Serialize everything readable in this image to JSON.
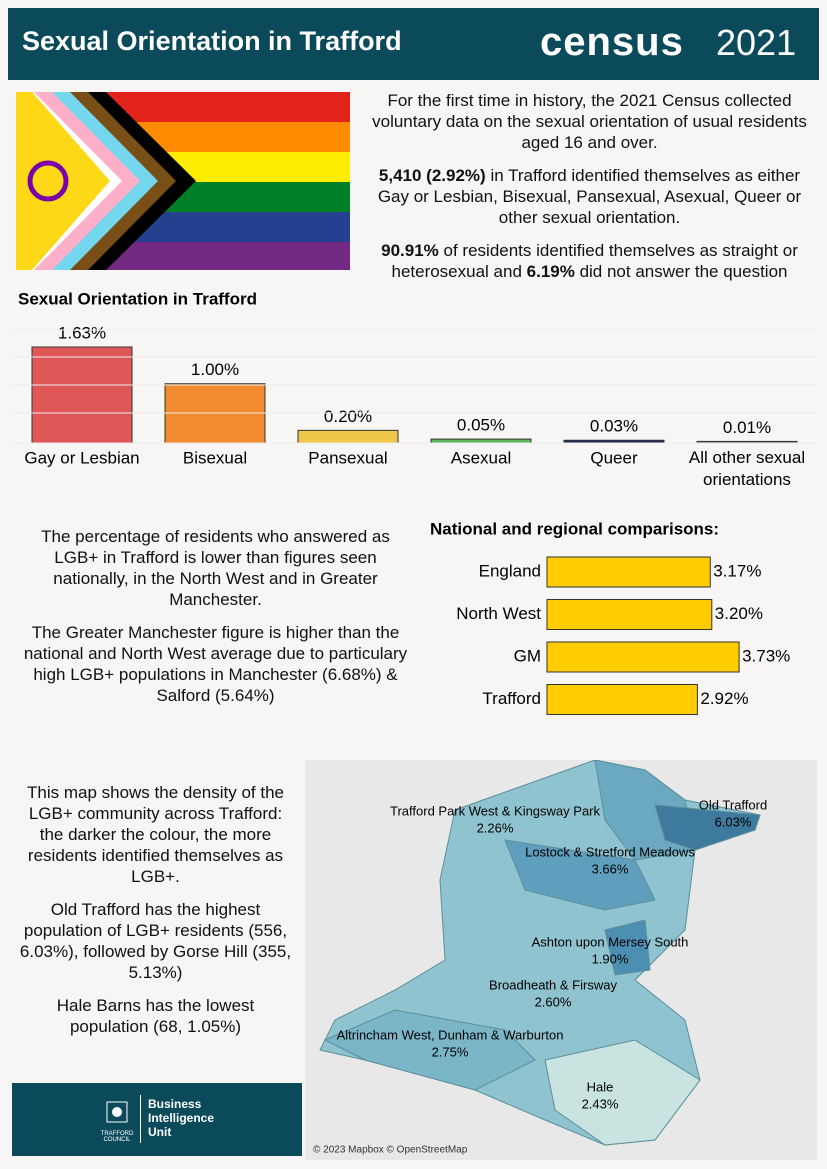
{
  "header": {
    "title": "Sexual Orientation in Trafford",
    "logo_word": "census",
    "logo_year": "2021"
  },
  "intro": [
    [
      "For the first time in history, the 2021 Census collected voluntary data on the sexual orientation of usual residents aged 16 and over."
    ],
    [
      "5,410 (2.92%)",
      " in Trafford identified themselves as either Gay or Lesbian, Bisexual, Pansexual, Asexual, Queer or other sexual orientation."
    ],
    [
      "90.91%",
      " of residents identified themselves as straight or heterosexual and ",
      "6.19%",
      " did not answer the question"
    ]
  ],
  "chart_data": [
    {
      "type": "bar",
      "title": "Sexual Orientation in Trafford",
      "categories": [
        "Gay or Lesbian",
        "Bisexual",
        "Pansexual",
        "Asexual",
        "Queer",
        "All other sexual orientations"
      ],
      "values": [
        1.63,
        1.0,
        0.2,
        0.05,
        0.03,
        0.01
      ],
      "value_labels": [
        "1.63%",
        "1.00%",
        "0.20%",
        "0.05%",
        "0.03%",
        "0.01%"
      ],
      "colors": [
        "#e05757",
        "#f28b30",
        "#efc84a",
        "#5cb85c",
        "#1f2a55",
        "#666666"
      ]
    },
    {
      "type": "hbar",
      "title": "National and regional comparisons:",
      "categories": [
        "England",
        "North West",
        "GM",
        "Trafford"
      ],
      "values": [
        3.17,
        3.2,
        3.73,
        2.92
      ],
      "value_labels": [
        "3.17%",
        "3.20%",
        "3.73%",
        "2.92%"
      ],
      "color": "#ffcc00"
    }
  ],
  "comparison_text": [
    "The percentage of residents who answered as LGB+ in Trafford is lower than figures seen nationally, in the North West and in Greater Manchester.",
    "The Greater Manchester figure is higher than the national and North West average due to particulary high LGB+ populations in Manchester  (6.68%) & Salford (5.64%)"
  ],
  "map_text": [
    "This map shows the density of the LGB+ community across Trafford: the darker the colour, the more residents identified themselves as LGB+.",
    "Old Trafford has the highest population of LGB+ residents (556, 6.03%), followed by Gorse Hill (355, 5.13%)",
    "Hale Barns has the lowest population (68, 1.05%)"
  ],
  "map": {
    "regions": [
      {
        "name": "Trafford Park West & Kingsway Park",
        "value": "2.26%"
      },
      {
        "name": "Old Trafford",
        "value": "6.03%"
      },
      {
        "name": "Lostock & Stretford Meadows",
        "value": "3.66%"
      },
      {
        "name": "Ashton upon Mersey South",
        "value": "1.90%"
      },
      {
        "name": "Broadheath & Firsway",
        "value": "2.60%"
      },
      {
        "name": "Altrincham West, Dunham & Warburton",
        "value": "2.75%"
      },
      {
        "name": "Hale",
        "value": "2.43%"
      }
    ],
    "attribution": "© 2023 Mapbox © OpenStreetMap"
  },
  "footer": {
    "council": "TRAFFORD COUNCIL",
    "unit": "Business Intelligence Unit"
  }
}
